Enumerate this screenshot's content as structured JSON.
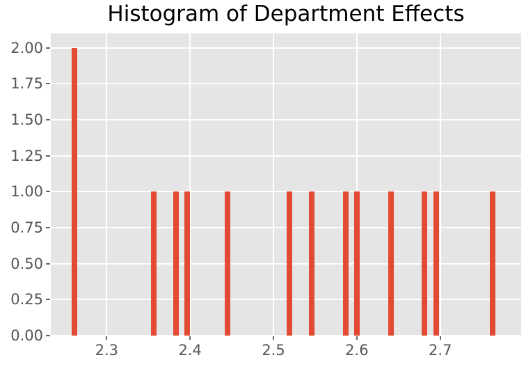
{
  "chart_data": {
    "type": "bar",
    "subtype": "histogram",
    "title": "Histogram of Department Effects",
    "xlabel": "",
    "ylabel": "",
    "xlim": [
      2.233,
      2.797
    ],
    "ylim": [
      0,
      2.1
    ],
    "grid": true,
    "legend_position": "none",
    "xticks": [
      2.3,
      2.4,
      2.5,
      2.6,
      2.7
    ],
    "xtick_labels": [
      "2.3",
      "2.4",
      "2.5",
      "2.6",
      "2.7"
    ],
    "yticks": [
      0,
      0.25,
      0.5,
      0.75,
      1.0,
      1.25,
      1.5,
      1.75,
      2.0
    ],
    "ytick_labels": [
      "0.00",
      "0.25",
      "0.50",
      "0.75",
      "1.00",
      "1.25",
      "1.50",
      "1.75",
      "2.00"
    ],
    "bar_width": 0.0067,
    "bars": [
      {
        "x": 2.2616,
        "count": 2
      },
      {
        "x": 2.3565,
        "count": 1
      },
      {
        "x": 2.3832,
        "count": 1
      },
      {
        "x": 2.3965,
        "count": 1
      },
      {
        "x": 2.4449,
        "count": 1
      },
      {
        "x": 2.5191,
        "count": 1
      },
      {
        "x": 2.5458,
        "count": 1
      },
      {
        "x": 2.5868,
        "count": 1
      },
      {
        "x": 2.6001,
        "count": 1
      },
      {
        "x": 2.641,
        "count": 1
      },
      {
        "x": 2.681,
        "count": 1
      },
      {
        "x": 2.6952,
        "count": 1
      },
      {
        "x": 2.7627,
        "count": 1
      }
    ],
    "colors": {
      "bar": "#E24A33",
      "plot_background": "#E5E5E5",
      "grid": "#FFFFFF",
      "tick_mark": "#666666",
      "tick_label": "#555555",
      "title": "#000000",
      "figure_background": "#FFFFFF"
    }
  }
}
